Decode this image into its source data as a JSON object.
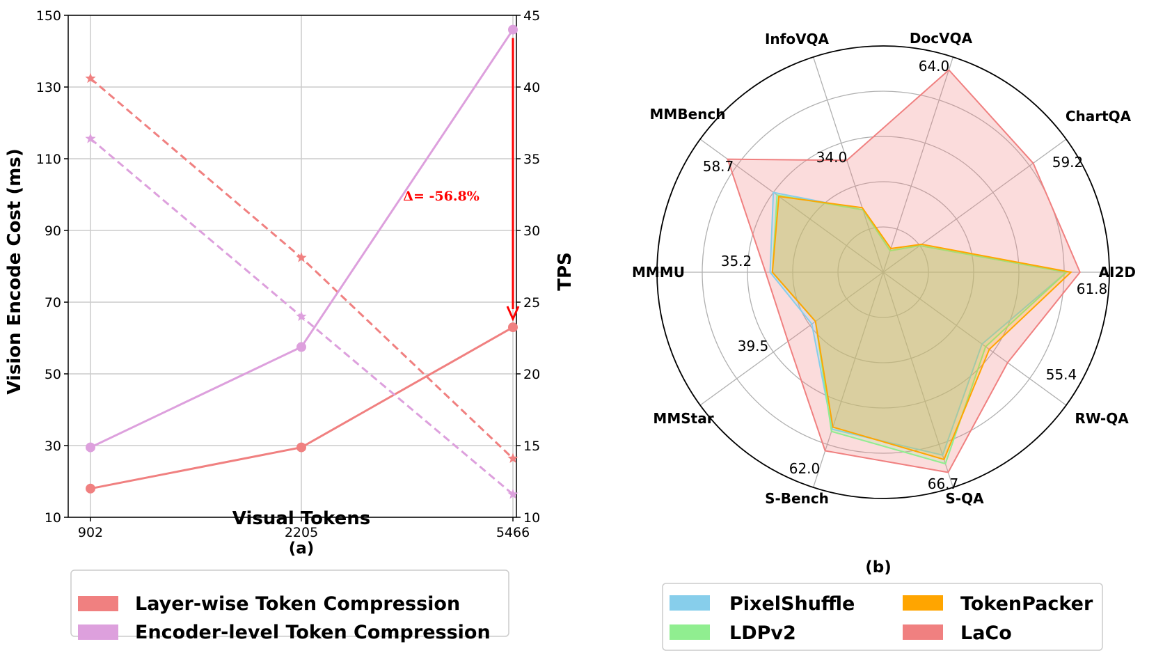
{
  "chart_data": [
    {
      "type": "line",
      "panel_label": "(a)",
      "xlabel": "Visual Tokens",
      "ylabel": "Vision Encode Cost (ms)",
      "y2label": "TPS",
      "categories": [
        "902",
        "2205",
        "5466"
      ],
      "ylim": [
        10,
        150
      ],
      "yticks": [
        "10",
        "30",
        "50",
        "70",
        "90",
        "110",
        "130",
        "150"
      ],
      "y2lim": [
        10,
        45
      ],
      "y2ticks": [
        "10",
        "15",
        "20",
        "25",
        "30",
        "35",
        "40",
        "45"
      ],
      "grid": true,
      "series": [
        {
          "name": "Layer-wise Token Compression",
          "color": "#f08080",
          "cost_ms": [
            18,
            29.5,
            63
          ],
          "tps": [
            40.6,
            28.1,
            14.1
          ]
        },
        {
          "name": "Encoder-level Token Compression",
          "color": "#dda0dd",
          "cost_ms": [
            29.5,
            57.5,
            146
          ],
          "tps": [
            36.4,
            24,
            11.6
          ]
        }
      ],
      "annotation": {
        "text": "Δ= -56.8%",
        "color": "#ff0000"
      },
      "legend_placement": "bottom"
    },
    {
      "type": "radar",
      "panel_label": "(b)",
      "axes": [
        "AI2D",
        "ChartQA",
        "DocVQA",
        "InfoVQA",
        "MMBench",
        "MMMU",
        "MMStar",
        "S-Bench",
        "S-QA",
        "RW-QA"
      ],
      "value_labels": [
        "61.8",
        "59.2",
        "64.0",
        "34.0",
        "58.7",
        "35.2",
        "39.5",
        "62.0",
        "66.7",
        "55.4"
      ],
      "normalized_scores": [
        0.87,
        0.82,
        0.94,
        0.52,
        0.85,
        0.52,
        0.52,
        0.83,
        0.93,
        0.68
      ],
      "series": [
        {
          "name": "PixelShuffle",
          "color": "#87ceeb",
          "normalized_scores": [
            0.81,
            0.2,
            0.1,
            0.29,
            0.6,
            0.5,
            0.39,
            0.73,
            0.85,
            0.54
          ]
        },
        {
          "name": "LDPv2",
          "color": "#90ee90",
          "normalized_scores": [
            0.81,
            0.2,
            0.1,
            0.29,
            0.58,
            0.49,
            0.37,
            0.74,
            0.89,
            0.56
          ]
        },
        {
          "name": "TokenPacker",
          "color": "#ffa500",
          "normalized_scores": [
            0.83,
            0.21,
            0.11,
            0.3,
            0.57,
            0.49,
            0.37,
            0.72,
            0.87,
            0.58
          ]
        },
        {
          "name": "LaCo",
          "color": "#f08080",
          "normalized_scores": [
            0.87,
            0.82,
            0.94,
            0.52,
            0.85,
            0.52,
            0.52,
            0.83,
            0.93,
            0.68
          ]
        }
      ],
      "legend_placement": "bottom"
    }
  ]
}
